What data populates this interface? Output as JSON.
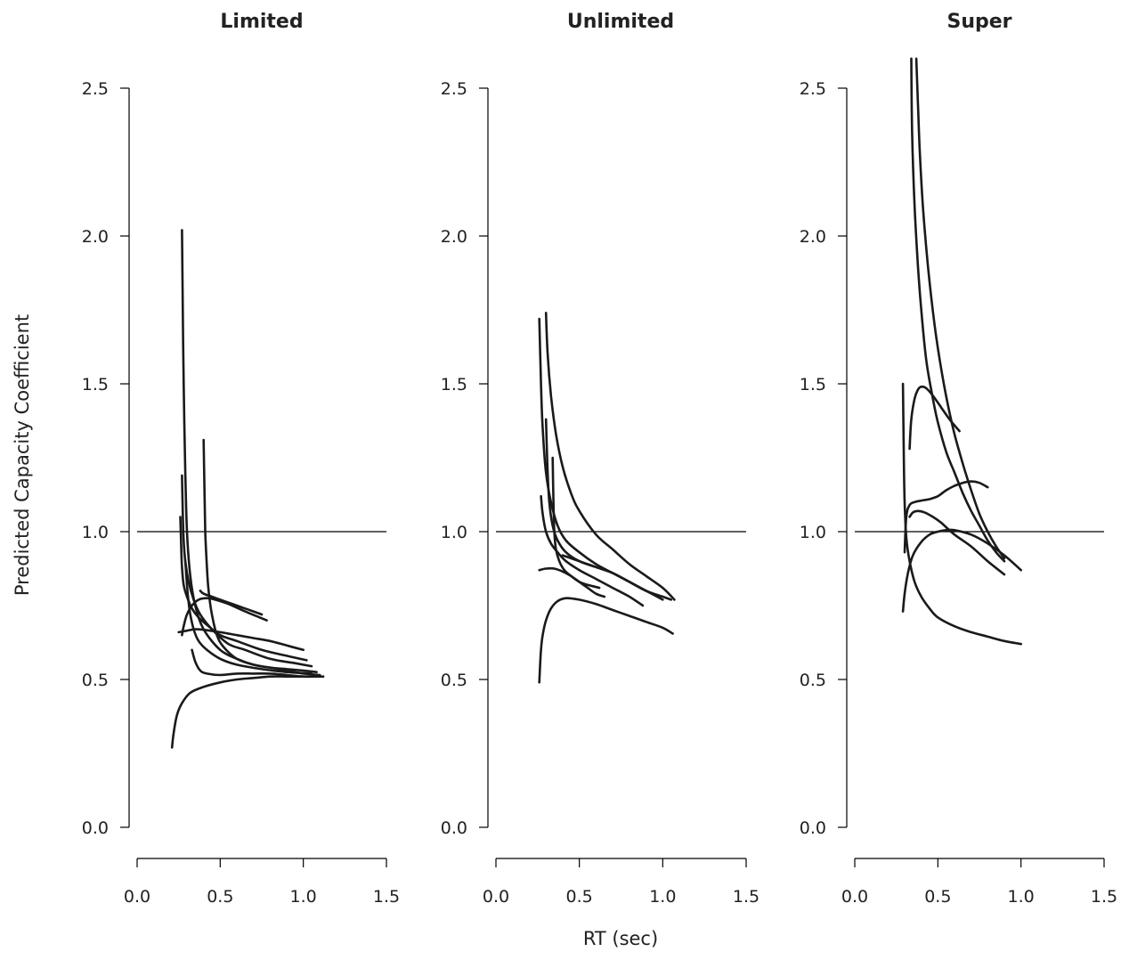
{
  "chart_data": [
    {
      "type": "line",
      "title": "Limited",
      "reference_line": 1.0,
      "xlim": [
        0,
        1.5
      ],
      "ylim": [
        0,
        2.5
      ],
      "x_ticks": [
        "0.0",
        "0.5",
        "1.0",
        "1.5"
      ],
      "y_ticks": [
        "0.0",
        "0.5",
        "1.0",
        "1.5",
        "2.0",
        "2.5"
      ],
      "series": [
        {
          "x": [
            0.27,
            0.275,
            0.28,
            0.29,
            0.3,
            0.32,
            0.35,
            0.4,
            0.5,
            0.6,
            0.7,
            0.8,
            0.9,
            1.0,
            1.08
          ],
          "y": [
            2.02,
            1.75,
            1.5,
            1.2,
            1.0,
            0.85,
            0.75,
            0.67,
            0.6,
            0.57,
            0.55,
            0.54,
            0.535,
            0.53,
            0.525
          ]
        },
        {
          "x": [
            0.4,
            0.405,
            0.41,
            0.42,
            0.43,
            0.45,
            0.48,
            0.52,
            0.6,
            0.7,
            0.8,
            0.9,
            1.0,
            1.1
          ],
          "y": [
            1.31,
            1.15,
            1.0,
            0.88,
            0.8,
            0.72,
            0.65,
            0.61,
            0.57,
            0.55,
            0.54,
            0.53,
            0.52,
            0.515
          ]
        },
        {
          "x": [
            0.27,
            0.275,
            0.28,
            0.29,
            0.31,
            0.34,
            0.38,
            0.45,
            0.55,
            0.65,
            0.8,
            0.95,
            1.05
          ],
          "y": [
            1.19,
            1.06,
            0.97,
            0.9,
            0.83,
            0.77,
            0.72,
            0.67,
            0.62,
            0.6,
            0.57,
            0.555,
            0.545
          ]
        },
        {
          "x": [
            0.26,
            0.265,
            0.27,
            0.28,
            0.3,
            0.33,
            0.37,
            0.43,
            0.5,
            0.6,
            0.75,
            0.9,
            1.02
          ],
          "y": [
            1.05,
            0.95,
            0.88,
            0.82,
            0.78,
            0.74,
            0.71,
            0.68,
            0.65,
            0.63,
            0.6,
            0.58,
            0.565
          ]
        },
        {
          "x": [
            0.29,
            0.3,
            0.31,
            0.32,
            0.34,
            0.37,
            0.42,
            0.5,
            0.6,
            0.75,
            0.9,
            1.05
          ],
          "y": [
            0.9,
            0.82,
            0.76,
            0.72,
            0.67,
            0.63,
            0.6,
            0.57,
            0.55,
            0.535,
            0.525,
            0.52
          ]
        },
        {
          "x": [
            0.27,
            0.28,
            0.3,
            0.33,
            0.37,
            0.42,
            0.47,
            0.55,
            0.65,
            0.78
          ],
          "y": [
            0.65,
            0.68,
            0.72,
            0.75,
            0.77,
            0.775,
            0.77,
            0.755,
            0.73,
            0.7
          ]
        },
        {
          "x": [
            0.38,
            0.4,
            0.45,
            0.5,
            0.55,
            0.6,
            0.65,
            0.7,
            0.75
          ],
          "y": [
            0.8,
            0.79,
            0.78,
            0.77,
            0.76,
            0.75,
            0.74,
            0.73,
            0.72
          ]
        },
        {
          "x": [
            0.25,
            0.3,
            0.35,
            0.4,
            0.5,
            0.6,
            0.7,
            0.8,
            0.9,
            1.0
          ],
          "y": [
            0.66,
            0.665,
            0.67,
            0.668,
            0.66,
            0.65,
            0.64,
            0.63,
            0.615,
            0.6
          ]
        },
        {
          "x": [
            0.33,
            0.35,
            0.38,
            0.42,
            0.5,
            0.6,
            0.7,
            0.8,
            0.9,
            1.0,
            1.1
          ],
          "y": [
            0.6,
            0.56,
            0.53,
            0.52,
            0.515,
            0.52,
            0.52,
            0.52,
            0.515,
            0.51,
            0.51
          ]
        },
        {
          "x": [
            0.21,
            0.22,
            0.24,
            0.27,
            0.32,
            0.4,
            0.5,
            0.6,
            0.7,
            0.8,
            0.9,
            1.0,
            1.12
          ],
          "y": [
            0.27,
            0.32,
            0.38,
            0.42,
            0.455,
            0.475,
            0.49,
            0.5,
            0.505,
            0.51,
            0.51,
            0.51,
            0.51
          ]
        }
      ]
    },
    {
      "type": "line",
      "title": "Unlimited",
      "reference_line": 1.0,
      "xlim": [
        0,
        1.5
      ],
      "ylim": [
        0,
        2.5
      ],
      "x_ticks": [
        "0.0",
        "0.5",
        "1.0",
        "1.5"
      ],
      "y_ticks": [
        "0.0",
        "0.5",
        "1.0",
        "1.5",
        "2.0",
        "2.5"
      ],
      "series": [
        {
          "x": [
            0.26,
            0.27,
            0.28,
            0.3,
            0.33,
            0.37,
            0.42,
            0.5,
            0.6,
            0.7,
            0.8,
            0.9,
            1.0
          ],
          "y": [
            1.72,
            1.5,
            1.35,
            1.2,
            1.1,
            1.02,
            0.97,
            0.93,
            0.89,
            0.86,
            0.83,
            0.8,
            0.77
          ]
        },
        {
          "x": [
            0.3,
            0.31,
            0.33,
            0.36,
            0.4,
            0.45,
            0.5,
            0.6,
            0.7,
            0.8,
            0.9,
            1.0,
            1.07
          ],
          "y": [
            1.74,
            1.6,
            1.46,
            1.33,
            1.22,
            1.13,
            1.07,
            0.99,
            0.94,
            0.89,
            0.85,
            0.81,
            0.77
          ]
        },
        {
          "x": [
            0.3,
            0.31,
            0.32,
            0.34,
            0.37,
            0.42,
            0.5,
            0.6,
            0.7,
            0.8,
            0.9,
            1.0,
            1.05
          ],
          "y": [
            1.38,
            1.2,
            1.1,
            1.02,
            0.97,
            0.93,
            0.9,
            0.88,
            0.86,
            0.83,
            0.8,
            0.78,
            0.77
          ]
        },
        {
          "x": [
            0.34,
            0.345,
            0.35,
            0.36,
            0.38,
            0.41,
            0.45,
            0.5,
            0.55,
            0.62
          ],
          "y": [
            1.25,
            1.1,
            1.0,
            0.94,
            0.9,
            0.87,
            0.85,
            0.83,
            0.82,
            0.81
          ]
        },
        {
          "x": [
            0.27,
            0.28,
            0.3,
            0.33,
            0.37,
            0.42,
            0.5,
            0.6,
            0.7,
            0.8,
            0.88
          ],
          "y": [
            1.12,
            1.06,
            1.0,
            0.96,
            0.93,
            0.9,
            0.87,
            0.84,
            0.81,
            0.78,
            0.75
          ]
        },
        {
          "x": [
            0.4,
            0.45,
            0.5,
            0.6,
            0.7,
            0.8,
            0.9,
            0.98
          ],
          "y": [
            0.92,
            0.91,
            0.9,
            0.88,
            0.86,
            0.83,
            0.8,
            0.78
          ]
        },
        {
          "x": [
            0.26,
            0.3,
            0.35,
            0.4,
            0.45,
            0.5,
            0.55,
            0.6,
            0.65
          ],
          "y": [
            0.87,
            0.875,
            0.875,
            0.865,
            0.85,
            0.83,
            0.81,
            0.79,
            0.78
          ]
        },
        {
          "x": [
            0.26,
            0.265,
            0.27,
            0.28,
            0.3,
            0.33,
            0.37,
            0.42,
            0.5,
            0.6,
            0.7,
            0.8,
            0.9,
            1.0,
            1.06
          ],
          "y": [
            0.49,
            0.55,
            0.6,
            0.65,
            0.7,
            0.74,
            0.765,
            0.775,
            0.77,
            0.755,
            0.735,
            0.715,
            0.695,
            0.675,
            0.655
          ]
        }
      ]
    },
    {
      "type": "line",
      "title": "Super",
      "reference_line": 1.0,
      "xlim": [
        0,
        1.5
      ],
      "ylim": [
        0,
        2.5
      ],
      "x_ticks": [
        "0.0",
        "0.5",
        "1.0",
        "1.5"
      ],
      "y_ticks": [
        "0.0",
        "0.5",
        "1.0",
        "1.5",
        "2.0",
        "2.5"
      ],
      "series": [
        {
          "x": [
            0.34,
            0.345,
            0.36,
            0.38,
            0.4,
            0.43,
            0.47,
            0.5,
            0.55,
            0.6,
            0.65,
            0.7,
            0.75,
            0.8,
            0.85,
            0.9
          ],
          "y": [
            2.6,
            2.35,
            2.1,
            1.9,
            1.75,
            1.58,
            1.45,
            1.37,
            1.27,
            1.2,
            1.13,
            1.07,
            1.02,
            0.97,
            0.93,
            0.9
          ]
        },
        {
          "x": [
            0.37,
            0.38,
            0.39,
            0.41,
            0.44,
            0.48,
            0.52,
            0.56,
            0.6,
            0.65,
            0.7,
            0.75,
            0.8,
            0.85,
            0.9
          ],
          "y": [
            2.6,
            2.45,
            2.3,
            2.1,
            1.9,
            1.7,
            1.55,
            1.43,
            1.33,
            1.23,
            1.14,
            1.06,
            1.0,
            0.95,
            0.91
          ]
        },
        {
          "x": [
            0.33,
            0.34,
            0.36,
            0.38,
            0.4,
            0.43,
            0.47,
            0.52,
            0.57,
            0.63
          ],
          "y": [
            1.28,
            1.38,
            1.45,
            1.48,
            1.49,
            1.485,
            1.46,
            1.42,
            1.38,
            1.34
          ]
        },
        {
          "x": [
            0.29,
            0.295,
            0.3,
            0.31,
            0.33,
            0.36,
            0.4,
            0.45,
            0.5,
            0.6,
            0.7,
            0.8,
            0.9,
            1.0
          ],
          "y": [
            1.5,
            1.25,
            1.1,
            0.98,
            0.9,
            0.83,
            0.78,
            0.74,
            0.71,
            0.68,
            0.66,
            0.645,
            0.63,
            0.62
          ]
        },
        {
          "x": [
            0.3,
            0.31,
            0.33,
            0.36,
            0.4,
            0.45,
            0.5,
            0.55,
            0.6,
            0.65,
            0.7,
            0.75,
            0.8
          ],
          "y": [
            0.93,
            1.05,
            1.09,
            1.1,
            1.105,
            1.11,
            1.12,
            1.14,
            1.155,
            1.165,
            1.17,
            1.165,
            1.15
          ]
        },
        {
          "x": [
            0.33,
            0.35,
            0.38,
            0.42,
            0.47,
            0.52,
            0.6,
            0.7,
            0.8,
            0.9
          ],
          "y": [
            1.05,
            1.065,
            1.07,
            1.065,
            1.05,
            1.03,
            0.99,
            0.95,
            0.9,
            0.855
          ]
        },
        {
          "x": [
            0.29,
            0.3,
            0.32,
            0.35,
            0.4,
            0.45,
            0.5,
            0.55,
            0.6,
            0.7,
            0.8,
            0.9,
            1.0
          ],
          "y": [
            0.73,
            0.79,
            0.86,
            0.92,
            0.965,
            0.99,
            1.0,
            1.005,
            1.005,
            0.99,
            0.96,
            0.92,
            0.87
          ]
        }
      ]
    }
  ],
  "axes": {
    "y_title": "Predicted Capacity Coefficient",
    "x_title": "RT (sec)"
  }
}
